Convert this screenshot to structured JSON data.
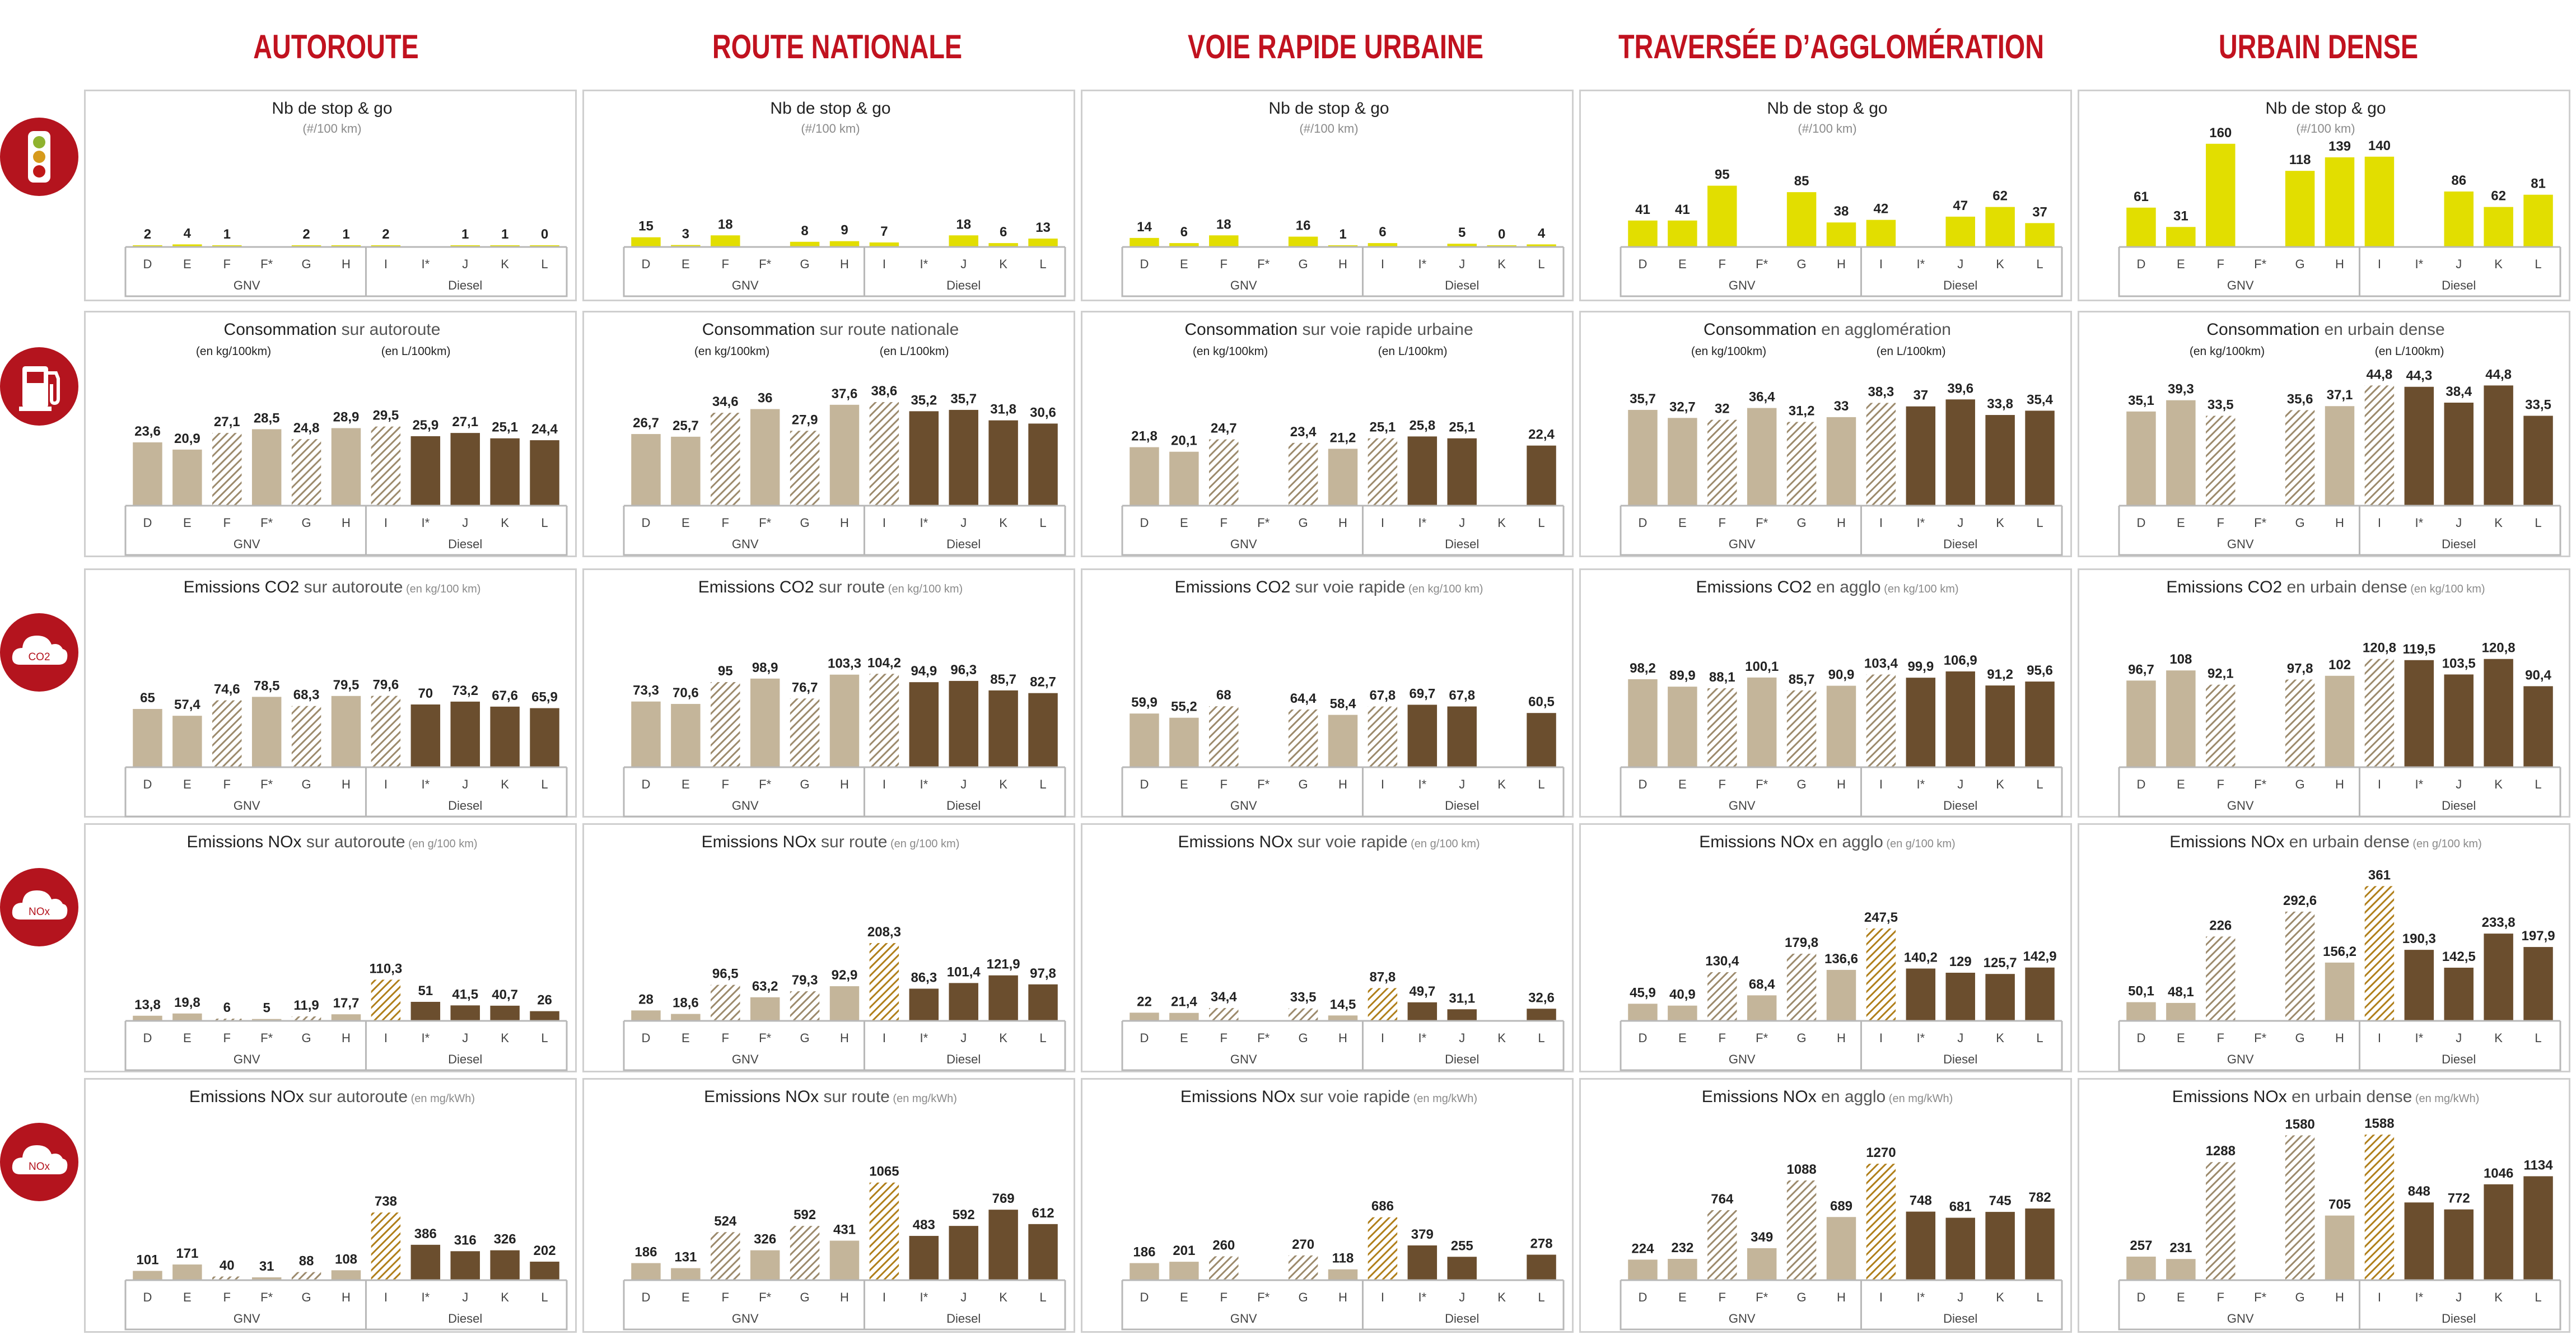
{
  "colors": {
    "title": "#c1121f",
    "icon_bg": "#b4141e",
    "stop_go": "#e2de00",
    "gnv": "#c4b59a",
    "diesel": "#6b4e2e",
    "hatch": "#9c8a6c",
    "nox_hatch": "#b07f1a",
    "axis": "#b8b8b8"
  },
  "icons": {
    "row1": "traffic-light-icon",
    "row2": "fuel-pump-icon",
    "row3": "co2-cloud-icon",
    "row4": "nox-cloud-icon",
    "row5": "nox-cloud-icon"
  },
  "icon_labels": {
    "co2": "CO2",
    "nox": "NOx"
  },
  "columns": [
    "AUTOROUTE",
    "ROUTE NATIONALE",
    "VOIE RAPIDE URBAINE",
    "TRAVERSÉE D’AGGLOMÉRATION",
    "URBAIN DENSE"
  ],
  "categories": [
    "D",
    "E",
    "F",
    "F*",
    "G",
    "H",
    "I",
    "I*",
    "J",
    "K",
    "L"
  ],
  "groups": {
    "gnv": "GNV",
    "diesel": "Diesel"
  },
  "hatched_categories": [
    "F",
    "G",
    "I"
  ],
  "chart_data": [
    {
      "type": "bar",
      "title": "Nb de stop & go",
      "subtitle": "(#/100 km)",
      "values": [
        [
          2,
          4,
          1,
          null,
          2,
          1,
          2,
          null,
          1,
          1,
          0
        ],
        [
          15,
          3,
          18,
          null,
          8,
          9,
          7,
          null,
          18,
          6,
          13
        ],
        [
          14,
          6,
          18,
          null,
          16,
          1,
          6,
          null,
          5,
          0,
          4
        ],
        [
          41,
          41,
          95,
          null,
          85,
          38,
          42,
          null,
          47,
          62,
          37
        ],
        [
          61,
          31,
          160,
          null,
          118,
          139,
          140,
          null,
          86,
          62,
          81
        ]
      ]
    },
    {
      "type": "bar",
      "titles": [
        [
          "Consommation",
          " sur autoroute"
        ],
        [
          "Consommation",
          " sur route nationale"
        ],
        [
          "Consommation",
          " sur voie rapide urbaine"
        ],
        [
          "Consommation",
          " en agglomération"
        ],
        [
          "Consommation",
          " en urbain dense"
        ]
      ],
      "unit_gnv": "(en kg/100km)",
      "unit_diesel": "(en L/100km)",
      "labels": [
        [
          "23,6",
          "20,9",
          "27,1",
          "28,5",
          "24,8",
          "28,9",
          "29,5",
          "25,9",
          "27,1",
          "25,1",
          "24,4"
        ],
        [
          "26,7",
          "25,7",
          "34,6",
          "36",
          "27,9",
          "37,6",
          "38,6",
          "35,2",
          "35,7",
          "31,8",
          "30,6"
        ],
        [
          "21,8",
          "20,1",
          "24,7",
          null,
          "23,4",
          "21,2",
          "25,1",
          "25,8",
          "25,1",
          null,
          "22,4"
        ],
        [
          "35,7",
          "32,7",
          "32",
          "36,4",
          "31,2",
          "33",
          "38,3",
          "37",
          "39,6",
          "33,8",
          "35,4"
        ],
        [
          "35,1",
          "39,3",
          "33,5",
          null,
          "35,6",
          "37,1",
          "44,8",
          "44,3",
          "38,4",
          "44,8",
          "33,5"
        ]
      ]
    },
    {
      "type": "bar",
      "titles": [
        [
          "Emissions CO2",
          " sur autoroute",
          " (en kg/100 km)"
        ],
        [
          "Emissions CO2",
          " sur route",
          " (en kg/100 km)"
        ],
        [
          "Emissions CO2",
          " sur voie rapide",
          " (en kg/100 km)"
        ],
        [
          "Emissions CO2",
          " en agglo",
          " (en kg/100 km)"
        ],
        [
          "Emissions CO2",
          " en urbain dense",
          " (en kg/100 km)"
        ]
      ],
      "labels": [
        [
          "65",
          "57,4",
          "74,6",
          "78,5",
          "68,3",
          "79,5",
          "79,6",
          "70",
          "73,2",
          "67,6",
          "65,9"
        ],
        [
          "73,3",
          "70,6",
          "95",
          "98,9",
          "76,7",
          "103,3",
          "104,2",
          "94,9",
          "96,3",
          "85,7",
          "82,7"
        ],
        [
          "59,9",
          "55,2",
          "68",
          null,
          "64,4",
          "58,4",
          "67,8",
          "69,7",
          "67,8",
          null,
          "60,5"
        ],
        [
          "98,2",
          "89,9",
          "88,1",
          "100,1",
          "85,7",
          "90,9",
          "103,4",
          "99,9",
          "106,9",
          "91,2",
          "95,6"
        ],
        [
          "96,7",
          "108",
          "92,1",
          null,
          "97,8",
          "102",
          "120,8",
          "119,5",
          "103,5",
          "120,8",
          "90,4"
        ]
      ]
    },
    {
      "type": "bar",
      "titles": [
        [
          "Emissions NOx",
          " sur autoroute",
          " (en g/100 km)"
        ],
        [
          "Emissions NOx",
          " sur route",
          " (en g/100 km)"
        ],
        [
          "Emissions NOx",
          " sur voie rapide",
          " (en g/100 km)"
        ],
        [
          "Emissions NOx",
          " en agglo",
          " (en g/100 km)"
        ],
        [
          "Emissions NOx",
          " en urbain dense",
          " (en g/100 km)"
        ]
      ],
      "labels": [
        [
          "13,8",
          "19,8",
          "6",
          "5",
          "11,9",
          "17,7",
          "110,3",
          "51",
          "41,5",
          "40,7",
          "26"
        ],
        [
          "28",
          "18,6",
          "96,5",
          "63,2",
          "79,3",
          "92,9",
          "208,3",
          "86,3",
          "101,4",
          "121,9",
          "97,8"
        ],
        [
          "22",
          "21,4",
          "34,4",
          null,
          "33,5",
          "14,5",
          "87,8",
          "49,7",
          "31,1",
          null,
          "32,6"
        ],
        [
          "45,9",
          "40,9",
          "130,4",
          "68,4",
          "179,8",
          "136,6",
          "247,5",
          "140,2",
          "129",
          "125,7",
          "142,9"
        ],
        [
          "50,1",
          "48,1",
          "226",
          null,
          "292,6",
          "156,2",
          "361",
          "190,3",
          "142,5",
          "233,8",
          "197,9"
        ]
      ]
    },
    {
      "type": "bar",
      "titles": [
        [
          "Emissions NOx",
          " sur autoroute",
          " (en mg/kWh)"
        ],
        [
          "Emissions NOx",
          " sur route",
          " (en mg/kWh)"
        ],
        [
          "Emissions NOx",
          " sur voie rapide",
          " (en mg/kWh)"
        ],
        [
          "Emissions NOx",
          " en agglo",
          " (en mg/kWh)"
        ],
        [
          "Emissions NOx",
          " en urbain dense",
          " (en mg/kWh)"
        ]
      ],
      "values": [
        [
          101,
          171,
          40,
          31,
          88,
          108,
          738,
          386,
          316,
          326,
          202
        ],
        [
          186,
          131,
          524,
          326,
          592,
          431,
          1065,
          483,
          592,
          769,
          612
        ],
        [
          186,
          201,
          260,
          null,
          270,
          118,
          686,
          379,
          255,
          null,
          278
        ],
        [
          224,
          232,
          764,
          349,
          1088,
          689,
          1270,
          748,
          681,
          745,
          782
        ],
        [
          257,
          231,
          1288,
          null,
          1580,
          705,
          1588,
          848,
          772,
          1046,
          1134
        ]
      ]
    }
  ]
}
